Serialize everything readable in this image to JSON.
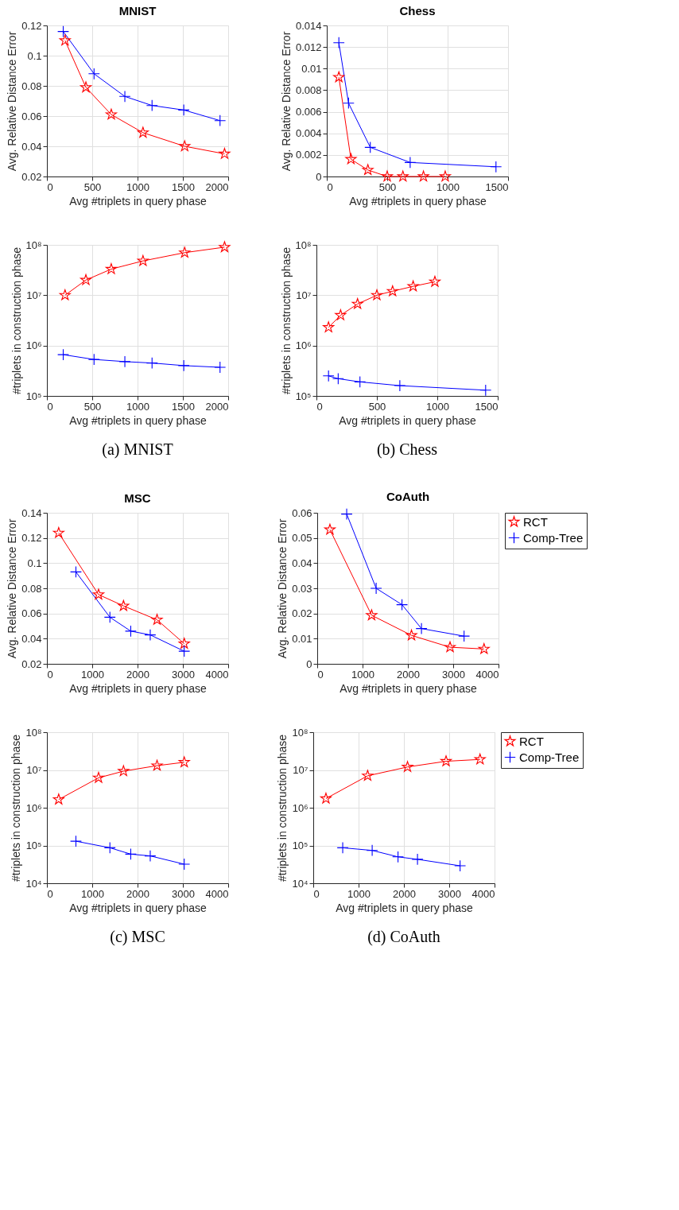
{
  "chart_data": [
    {
      "type": "line",
      "title": "MNIST",
      "xlabel": "Avg #triplets in query phase",
      "ylabel": "Avg. Relative Distance Error",
      "xlim": [
        0,
        2000
      ],
      "xticks": [
        0,
        500,
        1000,
        1500,
        2000
      ],
      "ylim": [
        0.02,
        0.12
      ],
      "yticks": [
        0.02,
        0.04,
        0.06,
        0.08,
        0.1,
        0.12
      ],
      "grid": true,
      "legend": false,
      "series": [
        {
          "color": "#ff0000",
          "marker": "star",
          "x": [
            200,
            430,
            710,
            1060,
            1520,
            1960
          ],
          "values": [
            0.11,
            0.079,
            0.061,
            0.049,
            0.04,
            0.035
          ]
        },
        {
          "color": "#0000ff",
          "marker": "cross",
          "x": [
            180,
            520,
            860,
            1160,
            1510,
            1910
          ],
          "values": [
            0.116,
            0.088,
            0.073,
            0.067,
            0.064,
            0.057
          ]
        }
      ]
    },
    {
      "type": "line",
      "title": "Chess",
      "xlabel": "Avg #triplets in query phase",
      "ylabel": "Avg. Relative Distance Error",
      "xlim": [
        0,
        1500
      ],
      "xticks": [
        0,
        500,
        1000,
        1500
      ],
      "ylim": [
        0,
        0.014
      ],
      "yticks": [
        0,
        0.002,
        0.004,
        0.006,
        0.008,
        0.01,
        0.012,
        0.014
      ],
      "grid": true,
      "legend": false,
      "series": [
        {
          "color": "#ff0000",
          "marker": "star",
          "x": [
            100,
            200,
            340,
            500,
            630,
            800,
            980
          ],
          "values": [
            0.0092,
            0.0016,
            0.0006,
            0,
            0,
            0,
            0
          ]
        },
        {
          "color": "#0000ff",
          "marker": "cross",
          "x": [
            100,
            180,
            360,
            690,
            1400
          ],
          "values": [
            0.0124,
            0.0068,
            0.0027,
            0.0013,
            0.0009
          ]
        }
      ]
    },
    {
      "type": "line",
      "xlabel": "Avg #triplets in query phase",
      "ylabel": "#triplets in construction phase",
      "xlim": [
        0,
        2000
      ],
      "xticks": [
        0,
        500,
        1000,
        1500,
        2000
      ],
      "ylim": [
        100000,
        100000000
      ],
      "yticks": [
        {
          "value": 100000,
          "label": "10⁵"
        },
        {
          "value": 1000000,
          "label": "10⁶"
        },
        {
          "value": 10000000,
          "label": "10⁷"
        },
        {
          "value": 100000000,
          "label": "10⁸"
        }
      ],
      "log": "y",
      "grid": true,
      "legend": false,
      "annotations": [
        "(a) MNIST"
      ],
      "series": [
        {
          "color": "#ff0000",
          "marker": "star",
          "x": [
            200,
            430,
            710,
            1060,
            1520,
            1960
          ],
          "values": [
            10000000,
            20000000,
            33000000,
            48000000,
            70000000,
            90000000
          ]
        },
        {
          "color": "#0000ff",
          "marker": "cross",
          "x": [
            180,
            520,
            860,
            1160,
            1510,
            1910
          ],
          "values": [
            660000,
            530000,
            480000,
            450000,
            400000,
            370000
          ]
        }
      ]
    },
    {
      "type": "line",
      "xlabel": "Avg #triplets in query phase",
      "ylabel": "#triplets in construction phase",
      "xlim": [
        0,
        1500
      ],
      "xticks": [
        0,
        500,
        1000,
        1500
      ],
      "ylim": [
        100000,
        100000000
      ],
      "yticks": [
        {
          "value": 100000,
          "label": "10⁵"
        },
        {
          "value": 1000000,
          "label": "10⁶"
        },
        {
          "value": 10000000,
          "label": "10⁷"
        },
        {
          "value": 100000000,
          "label": "10⁸"
        }
      ],
      "log": "y",
      "grid": true,
      "legend": false,
      "annotations": [
        "(b) Chess"
      ],
      "series": [
        {
          "color": "#ff0000",
          "marker": "star",
          "x": [
            100,
            200,
            340,
            500,
            630,
            800,
            980
          ],
          "values": [
            2300000,
            4000000,
            6700000,
            10000000,
            12000000,
            15000000,
            18500000
          ]
        },
        {
          "color": "#0000ff",
          "marker": "cross",
          "x": [
            100,
            180,
            360,
            690,
            1400
          ],
          "values": [
            250000,
            220000,
            190000,
            160000,
            130000
          ]
        }
      ]
    },
    {
      "type": "line",
      "title": "MSC",
      "xlabel": "Avg #triplets in query phase",
      "ylabel": "Avg. Relative Distance Error",
      "xlim": [
        0,
        4000
      ],
      "xticks": [
        0,
        1000,
        2000,
        3000,
        4000
      ],
      "ylim": [
        0.02,
        0.14
      ],
      "yticks": [
        0.02,
        0.04,
        0.06,
        0.08,
        0.1,
        0.12,
        0.14
      ],
      "grid": true,
      "legend": false,
      "series": [
        {
          "color": "#ff0000",
          "marker": "star",
          "x": [
            260,
            1140,
            1690,
            2430,
            3030
          ],
          "values": [
            0.124,
            0.075,
            0.066,
            0.055,
            0.036
          ]
        },
        {
          "color": "#0000ff",
          "marker": "cross",
          "x": [
            640,
            1390,
            1850,
            2280,
            3030
          ],
          "values": [
            0.093,
            0.057,
            0.046,
            0.043,
            0.03
          ]
        }
      ]
    },
    {
      "type": "line",
      "title": "CoAuth",
      "xlabel": "Avg #triplets in query phase",
      "ylabel": "Avg. Relative Distance Error",
      "xlim": [
        0,
        4000
      ],
      "xticks": [
        0,
        1000,
        2000,
        3000,
        4000
      ],
      "ylim": [
        0,
        0.06
      ],
      "yticks": [
        0,
        0.01,
        0.02,
        0.03,
        0.04,
        0.05,
        0.06
      ],
      "grid": true,
      "legend": "right",
      "series": [
        {
          "name": "RCT",
          "color": "#ff0000",
          "marker": "star",
          "x": [
            280,
            1200,
            2080,
            2930,
            3680
          ],
          "values": [
            0.0533,
            0.0193,
            0.0113,
            0.0066,
            0.0059
          ]
        },
        {
          "name": "Comp-Tree",
          "color": "#0000ff",
          "marker": "cross",
          "x": [
            650,
            1300,
            1870,
            2300,
            3240
          ],
          "values": [
            0.0595,
            0.03,
            0.0235,
            0.014,
            0.011
          ]
        }
      ]
    },
    {
      "type": "line",
      "xlabel": "Avg #triplets in query phase",
      "ylabel": "#triplets in construction phase",
      "xlim": [
        0,
        4000
      ],
      "xticks": [
        0,
        1000,
        2000,
        3000,
        4000
      ],
      "ylim": [
        10000,
        100000000
      ],
      "yticks": [
        {
          "value": 10000,
          "label": "10⁴"
        },
        {
          "value": 100000,
          "label": "10⁵"
        },
        {
          "value": 1000000,
          "label": "10⁶"
        },
        {
          "value": 10000000,
          "label": "10⁷"
        },
        {
          "value": 100000000,
          "label": "10⁸"
        }
      ],
      "log": "y",
      "grid": true,
      "legend": false,
      "annotations": [
        "(c) MSC"
      ],
      "series": [
        {
          "color": "#ff0000",
          "marker": "star",
          "x": [
            260,
            1140,
            1690,
            2430,
            3030
          ],
          "values": [
            1650000,
            6200000,
            9300000,
            13000000,
            16000000
          ]
        },
        {
          "color": "#0000ff",
          "marker": "cross",
          "x": [
            640,
            1390,
            1850,
            2280,
            3030
          ],
          "values": [
            130000,
            87000,
            59000,
            53000,
            32000
          ]
        }
      ]
    },
    {
      "type": "line",
      "xlabel": "Avg #triplets in query phase",
      "ylabel": "#triplets in construction phase",
      "xlim": [
        0,
        4000
      ],
      "xticks": [
        0,
        1000,
        2000,
        3000,
        4000
      ],
      "ylim": [
        10000,
        100000000
      ],
      "yticks": [
        {
          "value": 10000,
          "label": "10⁴"
        },
        {
          "value": 100000,
          "label": "10⁵"
        },
        {
          "value": 1000000,
          "label": "10⁶"
        },
        {
          "value": 10000000,
          "label": "10⁷"
        },
        {
          "value": 100000000,
          "label": "10⁸"
        }
      ],
      "log": "y",
      "grid": true,
      "legend": "right",
      "annotations": [
        "(d) CoAuth"
      ],
      "series": [
        {
          "name": "RCT",
          "color": "#ff0000",
          "marker": "star",
          "x": [
            280,
            1200,
            2080,
            2930,
            3680
          ],
          "values": [
            1750000,
            7000000,
            12000000,
            17000000,
            19000000
          ]
        },
        {
          "name": "Comp-Tree",
          "color": "#0000ff",
          "marker": "cross",
          "x": [
            650,
            1300,
            1870,
            2300,
            3240
          ],
          "values": [
            87000,
            74000,
            50000,
            43000,
            29000
          ]
        }
      ]
    }
  ]
}
